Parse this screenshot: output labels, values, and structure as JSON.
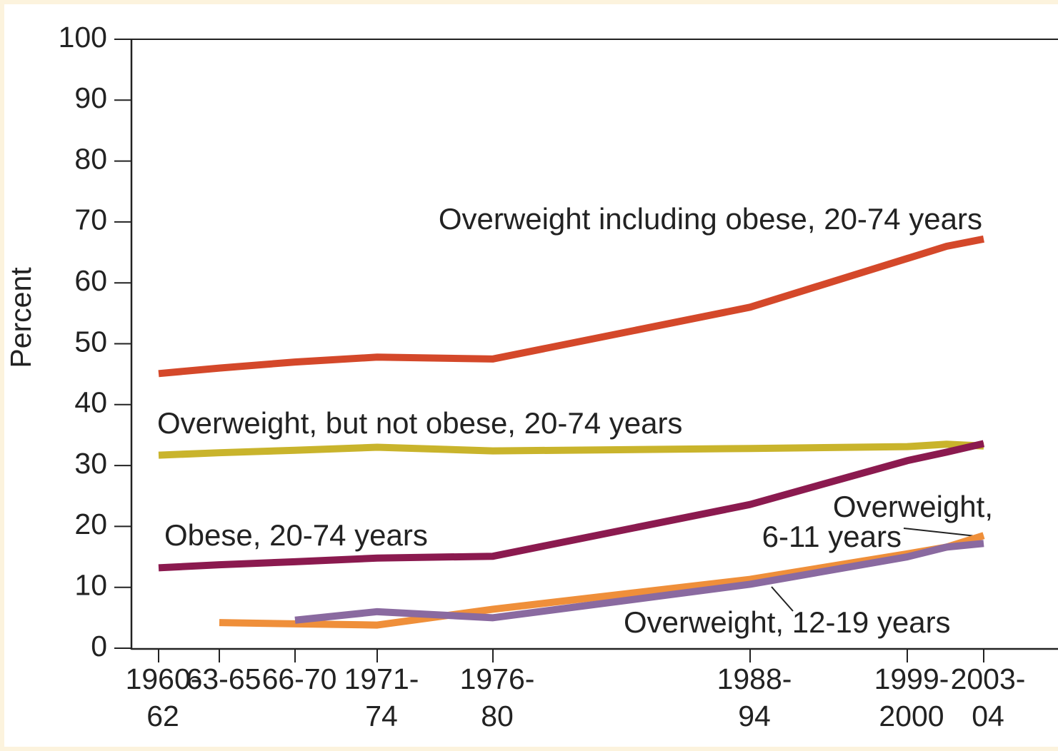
{
  "chart_data": {
    "type": "line",
    "y_label": "Percent",
    "categories": [
      "1960-62",
      "63-65",
      "66-70",
      "1971-74",
      "1976-80",
      "1988-94",
      "1999-2000",
      null,
      "2003-04"
    ],
    "series": [
      {
        "name": "Overweight including obese, 20-74 years",
        "color": "#d4482a",
        "values": [
          45.1,
          46.0,
          47.0,
          47.8,
          47.5,
          56.0,
          64.0,
          66.0,
          67.2
        ]
      },
      {
        "name": "Overweight, but not obese, 20-74 years",
        "color": "#c9b42c",
        "values": [
          31.7,
          32.1,
          32.5,
          33.0,
          32.4,
          32.8,
          33.1,
          33.5,
          33.2
        ]
      },
      {
        "name": "Obese, 20-74 years",
        "color": "#8b1a4f",
        "values": [
          13.2,
          13.7,
          14.2,
          14.8,
          15.1,
          23.6,
          30.8,
          32.2,
          33.6
        ]
      },
      {
        "name": "Overweight, 6-11 years",
        "color": "#ef8f3a",
        "values": [
          null,
          4.2,
          4.0,
          3.8,
          6.4,
          11.3,
          15.5,
          16.6,
          18.5
        ]
      },
      {
        "name": "Overweight, 12-19 years",
        "color": "#8a6aa0",
        "values": [
          null,
          null,
          4.6,
          6.0,
          5.0,
          10.5,
          15.0,
          16.6,
          17.2
        ]
      }
    ],
    "annotations": [
      "Overweight including obese, 20-74 years",
      "Overweight, but not obese, 20-74 years",
      "Obese, 20-74 years",
      "Overweight,",
      "6-11 years",
      "Overweight, 12-19 years"
    ],
    "ylim": [
      0,
      100
    ],
    "yticks": [
      0,
      10,
      20,
      30,
      40,
      50,
      60,
      70,
      80,
      90,
      100
    ]
  }
}
